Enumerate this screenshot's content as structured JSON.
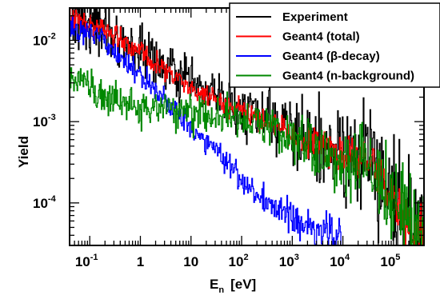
{
  "chart_data": {
    "type": "line",
    "title": "",
    "xlabel": "E",
    "xlabel_sub": "n",
    "xlabel_unit": "[eV]",
    "ylabel": "Yield",
    "x_scale": "log",
    "y_scale": "log",
    "xlim": [
      0.04,
      400000
    ],
    "ylim": [
      3e-05,
      0.025
    ],
    "grid": false,
    "legend_position": "top-right",
    "x_ticks": [
      {
        "value": 0.1,
        "base": "10",
        "exp": "-1"
      },
      {
        "value": 1,
        "label": "1"
      },
      {
        "value": 10,
        "label": "10"
      },
      {
        "value": 100,
        "base": "10",
        "exp": "2"
      },
      {
        "value": 1000,
        "base": "10",
        "exp": "3"
      },
      {
        "value": 10000,
        "base": "10",
        "exp": "4"
      },
      {
        "value": 100000,
        "base": "10",
        "exp": "5"
      }
    ],
    "y_ticks": [
      {
        "value": 0.0001,
        "base": "10",
        "exp": "-4"
      },
      {
        "value": 0.001,
        "base": "10",
        "exp": "-3"
      },
      {
        "value": 0.01,
        "base": "10",
        "exp": "-2"
      }
    ],
    "series": [
      {
        "name": "Experiment",
        "color": "#000000",
        "x": [
          0.04,
          0.06,
          0.08,
          0.1,
          0.13,
          0.16,
          0.2,
          0.3,
          0.5,
          1,
          2,
          5,
          10,
          20,
          50,
          100,
          200,
          500,
          1000,
          2000,
          5000,
          10000,
          20000,
          30000,
          40000,
          50000,
          70000,
          100000,
          150000,
          200000,
          300000,
          400000
        ],
        "y": [
          0.02,
          0.019,
          0.0175,
          0.0165,
          0.0155,
          0.0148,
          0.014,
          0.012,
          0.0095,
          0.0073,
          0.0055,
          0.0038,
          0.0028,
          0.0022,
          0.0017,
          0.0014,
          0.0012,
          0.00095,
          0.00075,
          0.0006,
          0.00047,
          0.0004,
          0.00033,
          0.0004,
          0.00028,
          0.00025,
          0.00018,
          0.00012,
          8e-05,
          6e-05,
          4.5e-05,
          4e-05
        ],
        "noise": 0.16
      },
      {
        "name": "Geant4 (total)",
        "color": "#ff0000",
        "x": [
          0.04,
          0.06,
          0.08,
          0.1,
          0.13,
          0.16,
          0.2,
          0.3,
          0.5,
          1,
          2,
          5,
          10,
          20,
          50,
          100,
          200,
          500,
          1000,
          2000,
          5000,
          10000,
          20000,
          30000,
          40000,
          50000,
          70000,
          100000,
          150000,
          200000,
          300000,
          400000
        ],
        "y": [
          0.019,
          0.0178,
          0.0168,
          0.016,
          0.015,
          0.0142,
          0.0133,
          0.0115,
          0.009,
          0.0068,
          0.0051,
          0.0035,
          0.0026,
          0.002,
          0.00155,
          0.0013,
          0.0011,
          0.00088,
          0.0007,
          0.00057,
          0.00045,
          0.00038,
          0.00031,
          0.00036,
          0.00026,
          0.00022,
          0.00016,
          0.00011,
          7.5e-05,
          5.5e-05,
          4.2e-05,
          3.8e-05
        ],
        "noise": 0.07
      },
      {
        "name": "Geant4 (β-decay)",
        "color": "#0000ff",
        "x": [
          0.04,
          0.06,
          0.08,
          0.1,
          0.13,
          0.16,
          0.2,
          0.3,
          0.5,
          1,
          2,
          5,
          10,
          20,
          50,
          100,
          200,
          300,
          400,
          500,
          1000,
          2000,
          3000,
          5000,
          8000,
          10000
        ],
        "y": [
          0.015,
          0.0135,
          0.0125,
          0.012,
          0.0112,
          0.0103,
          0.0092,
          0.0075,
          0.0055,
          0.0037,
          0.0025,
          0.0014,
          0.00088,
          0.00058,
          0.00033,
          0.0002,
          0.00013,
          0.0001,
          9e-05,
          8.5e-05,
          6.5e-05,
          5.2e-05,
          4.5e-05,
          4e-05,
          3.5e-05,
          3.2e-05
        ],
        "noise": 0.08
      },
      {
        "name": "Geant4 (n-background)",
        "color": "#008800",
        "x": [
          0.04,
          0.06,
          0.08,
          0.1,
          0.2,
          0.5,
          1,
          2,
          5,
          10,
          20,
          50,
          100,
          200,
          500,
          1000,
          2000,
          5000,
          10000,
          20000,
          30000,
          40000,
          50000,
          70000,
          100000,
          150000,
          200000,
          300000,
          400000
        ],
        "y": [
          0.0037,
          0.0031,
          0.0027,
          0.0025,
          0.002,
          0.0017,
          0.0015,
          0.0014,
          0.0013,
          0.00125,
          0.0012,
          0.00112,
          0.00105,
          0.001,
          0.00082,
          0.00065,
          0.00053,
          0.00043,
          0.00037,
          0.00031,
          0.00035,
          0.00026,
          0.00022,
          0.00016,
          0.00011,
          7.5e-05,
          5.5e-05,
          4.2e-05,
          3.8e-05
        ],
        "noise": 0.12
      }
    ]
  }
}
